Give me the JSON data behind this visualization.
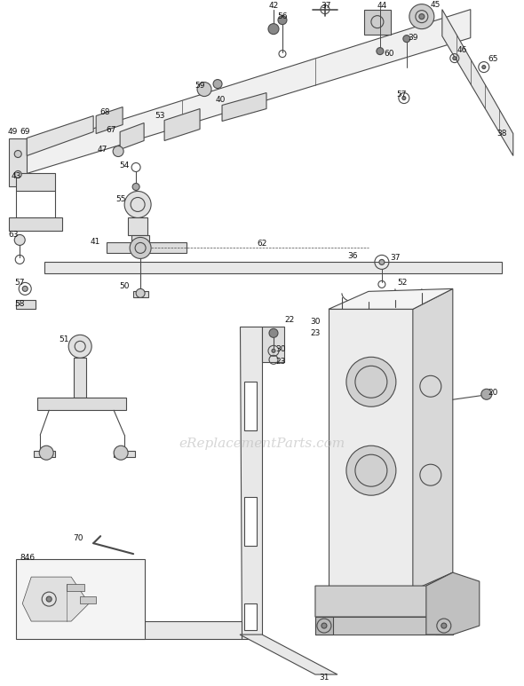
{
  "bg_color": "#ffffff",
  "line_color": "#4a4a4a",
  "label_color": "#111111",
  "watermark_text": "eReplacementParts.com",
  "watermark_color": "#bbbbbb",
  "watermark_fontsize": 11,
  "fig_width": 5.9,
  "fig_height": 7.73,
  "dpi": 100
}
